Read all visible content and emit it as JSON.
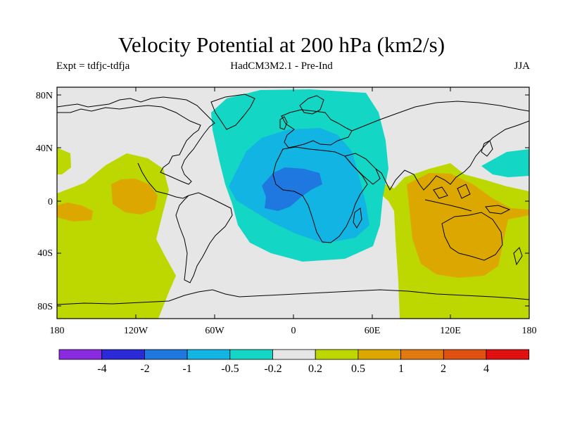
{
  "title": "Velocity Potential at 200 hPa (km2/s)",
  "experiment": "Expt = tdfjc-tdfja",
  "model": "HadCM3M2.1 - Pre-Ind",
  "season": "JJA",
  "latitude_ticks": [
    "80N",
    "40N",
    "0",
    "40S",
    "80S"
  ],
  "longitude_ticks": [
    "180",
    "120W",
    "60W",
    "0",
    "60E",
    "120E",
    "180"
  ],
  "colorbar": {
    "colors": [
      "#8a2be2",
      "#2a2ad8",
      "#1e78e0",
      "#12b4e4",
      "#14d6c4",
      "#e6e6e6",
      "#bcd800",
      "#dca800",
      "#e07a10",
      "#e05010",
      "#e01010"
    ],
    "labels": [
      "-4",
      "-2",
      "-1",
      "-0.5",
      "-0.2",
      "0.2",
      "0.5",
      "1",
      "2",
      "4"
    ]
  },
  "field_colors": {
    "background": "#e6e6e6",
    "positive_weak": "#bcd800",
    "positive_mid": "#dca800",
    "negative_weak": "#14d6c4",
    "negative_mid": "#12b4e4",
    "negative_strong": "#1e78e0",
    "coast": "#000000"
  }
}
